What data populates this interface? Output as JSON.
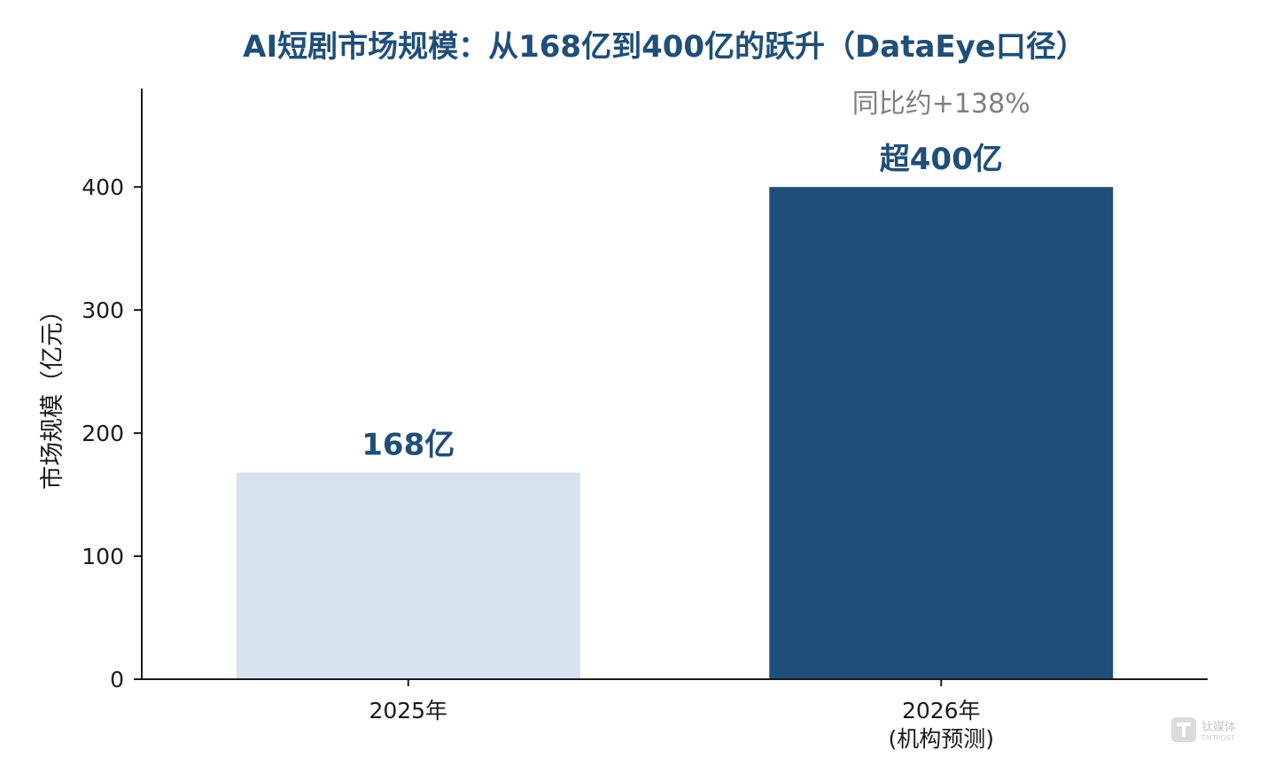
{
  "chart_data": {
    "type": "bar",
    "title": "AI短剧市场规模：从168亿到400亿的跃升（DataEye口径）",
    "ylabel": "市场规模（亿元）",
    "xlabel": "",
    "ylim": [
      0,
      480
    ],
    "yticks": [
      0,
      100,
      200,
      300,
      400
    ],
    "grid": false,
    "categories": [
      [
        "2025年"
      ],
      [
        "2026年",
        "(机构预测)"
      ]
    ],
    "values": [
      168,
      400
    ],
    "bar_colors": [
      "#d6e3ef",
      "#1f4e79"
    ],
    "data_labels": [
      "168亿",
      "超400亿"
    ],
    "annotation": "同比约+138%"
  },
  "watermark": {
    "icon": "tmtpost-logo-icon",
    "text": "钛媒体",
    "subtext": "TMTPOST"
  }
}
